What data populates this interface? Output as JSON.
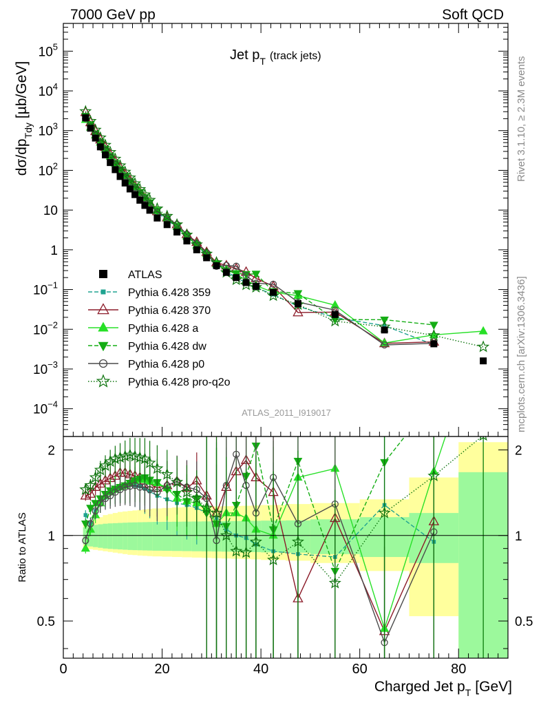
{
  "header": {
    "left": "7000 GeV pp",
    "right": "Soft QCD"
  },
  "side_labels": {
    "rivet": "Rivet 3.1.10, ≥ 2.3M events",
    "mcplots": "mcplots.cern.ch [arXiv:1306.3436]"
  },
  "chart_data": {
    "type": "scatter",
    "title": "Jet p",
    "title_sub": "T",
    "title_note": "(track jets)",
    "analysis_tag": "ATLAS_2011_I919017",
    "xlabel": "Charged Jet p",
    "xlabel_sub": "T",
    "xlabel_unit": "[GeV]",
    "ylabel": "dσ/dp",
    "ylabel_sub": "Tdy",
    "ylabel_unit": "[µb/GeV]",
    "ratio_ylabel": "Ratio to ATLAS",
    "xlim": [
      0,
      90
    ],
    "ylim": [
      2e-05,
      500000.0
    ],
    "yscale": "log",
    "ratio_ylim": [
      0.37,
      2.23
    ],
    "x_ticks": [
      "0",
      "20",
      "40",
      "60",
      "80"
    ],
    "y_ticks": [
      {
        "base": "10",
        "exp": "5"
      },
      {
        "base": "10",
        "exp": "4"
      },
      {
        "base": "10",
        "exp": "3"
      },
      {
        "base": "10",
        "exp": "2"
      },
      {
        "base": "10",
        "exp": ""
      },
      {
        "base": "1",
        "exp": ""
      },
      {
        "base": "10",
        "exp": "−1"
      },
      {
        "base": "10",
        "exp": "−2"
      },
      {
        "base": "10",
        "exp": "−3"
      },
      {
        "base": "10",
        "exp": "−4"
      }
    ],
    "ratio_ticks": [
      "0.5",
      "1",
      "2"
    ],
    "legend_position": "lower-left",
    "x": [
      4.5,
      5.5,
      6.5,
      7.5,
      8.5,
      9.5,
      10.5,
      11.5,
      12.5,
      13.5,
      14.5,
      15.5,
      16.5,
      17.5,
      19,
      21,
      23,
      25,
      27,
      29,
      31,
      33,
      35,
      37,
      39,
      42.5,
      47.5,
      55,
      65,
      75,
      85
    ],
    "data_values": [
      2100,
      1150,
      650,
      390,
      245,
      157,
      104,
      70,
      48,
      34,
      24.5,
      17.7,
      13.1,
      9.9,
      6.3,
      4.3,
      2.8,
      1.67,
      1.0,
      0.63,
      0.4,
      0.27,
      0.2,
      0.15,
      0.12,
      0.085,
      0.044,
      0.0235,
      0.0096,
      0.0043,
      0.0016
    ],
    "ratio_band_inner": [
      [
        4,
        4.5,
        0.93,
        1.07
      ],
      [
        4.5,
        5,
        0.92,
        1.08
      ],
      [
        5,
        6,
        0.915,
        1.085
      ],
      [
        6,
        7,
        0.91,
        1.09
      ],
      [
        7,
        8,
        0.905,
        1.095
      ],
      [
        8,
        9,
        0.9,
        1.1
      ],
      [
        9,
        10,
        0.897,
        1.103
      ],
      [
        10,
        11,
        0.895,
        1.105
      ],
      [
        11,
        12,
        0.893,
        1.107
      ],
      [
        12,
        13,
        0.891,
        1.109
      ],
      [
        13,
        14,
        0.889,
        1.111
      ],
      [
        14,
        15,
        0.888,
        1.112
      ],
      [
        15,
        16,
        0.887,
        1.113
      ],
      [
        16,
        17,
        0.886,
        1.114
      ],
      [
        17,
        18,
        0.885,
        1.115
      ],
      [
        18,
        20,
        0.884,
        1.116
      ],
      [
        20,
        22,
        0.883,
        1.117
      ],
      [
        22,
        24,
        0.882,
        1.118
      ],
      [
        24,
        26,
        0.881,
        1.119
      ],
      [
        26,
        28,
        0.88,
        1.12
      ],
      [
        28,
        30,
        0.879,
        1.121
      ],
      [
        30,
        32,
        0.878,
        1.122
      ],
      [
        32,
        34,
        0.877,
        1.123
      ],
      [
        34,
        36,
        0.876,
        1.124
      ],
      [
        36,
        38,
        0.875,
        1.125
      ],
      [
        38,
        40,
        0.874,
        1.126
      ],
      [
        40,
        45,
        0.872,
        1.128
      ],
      [
        45,
        50,
        0.87,
        1.13
      ],
      [
        50,
        60,
        0.86,
        1.14
      ],
      [
        60,
        70,
        0.84,
        1.16
      ],
      [
        70,
        80,
        0.8,
        1.2
      ],
      [
        80,
        90,
        0.37,
        1.67
      ]
    ],
    "ratio_band_outer": [
      [
        4,
        4.5,
        0.88,
        1.12
      ],
      [
        4.5,
        5,
        0.9,
        1.1
      ],
      [
        5,
        6,
        0.895,
        1.12
      ],
      [
        6,
        7,
        0.89,
        1.14
      ],
      [
        7,
        8,
        0.885,
        1.16
      ],
      [
        8,
        9,
        0.88,
        1.18
      ],
      [
        9,
        10,
        0.875,
        1.19
      ],
      [
        10,
        11,
        0.87,
        1.2
      ],
      [
        11,
        12,
        0.865,
        1.21
      ],
      [
        12,
        13,
        0.86,
        1.215
      ],
      [
        13,
        14,
        0.855,
        1.22
      ],
      [
        14,
        15,
        0.853,
        1.225
      ],
      [
        15,
        16,
        0.85,
        1.23
      ],
      [
        16,
        17,
        0.848,
        1.235
      ],
      [
        17,
        18,
        0.846,
        1.24
      ],
      [
        18,
        20,
        0.844,
        1.245
      ],
      [
        20,
        22,
        0.842,
        1.25
      ],
      [
        22,
        24,
        0.84,
        1.255
      ],
      [
        24,
        26,
        0.838,
        1.258
      ],
      [
        26,
        28,
        0.836,
        1.26
      ],
      [
        28,
        30,
        0.834,
        1.262
      ],
      [
        30,
        32,
        0.832,
        1.265
      ],
      [
        32,
        34,
        0.83,
        1.268
      ],
      [
        34,
        36,
        0.828,
        1.27
      ],
      [
        36,
        38,
        0.826,
        1.272
      ],
      [
        38,
        40,
        0.824,
        1.275
      ],
      [
        40,
        45,
        0.82,
        1.28
      ],
      [
        45,
        50,
        0.815,
        1.29
      ],
      [
        50,
        60,
        0.8,
        1.3
      ],
      [
        60,
        70,
        0.75,
        1.34
      ],
      [
        70,
        80,
        0.52,
        1.6
      ],
      [
        80,
        90,
        0.37,
        2.13
      ]
    ],
    "series": [
      {
        "name": "ATLAS",
        "color": "#000000",
        "marker": "square",
        "dash": "none",
        "is_data": true
      },
      {
        "name": "Pythia 6.428 359",
        "color": "#1fa390",
        "marker": "square-small",
        "dash": "6,3",
        "ratio": [
          1.18,
          1.1,
          1.22,
          1.3,
          1.36,
          1.41,
          1.45,
          1.49,
          1.5,
          1.51,
          1.5,
          1.49,
          1.46,
          1.43,
          1.38,
          1.34,
          1.3,
          1.28,
          1.25,
          1.2,
          1.15,
          1.05,
          1.0,
          0.98,
          0.93,
          0.88,
          0.86,
          0.84,
          1.28,
          0.95,
          null
        ]
      },
      {
        "name": "Pythia 6.428 370",
        "color": "#8b1a28",
        "marker": "triangle-open",
        "dash": "none",
        "ratio": [
          1.38,
          1.4,
          1.48,
          1.52,
          1.56,
          1.59,
          1.62,
          1.66,
          1.66,
          1.64,
          1.62,
          1.6,
          1.56,
          1.52,
          1.47,
          1.5,
          1.55,
          1.47,
          1.56,
          1.38,
          1.2,
          1.48,
          1.68,
          1.84,
          1.6,
          1.42,
          0.6,
          1.15,
          0.46,
          1.12,
          null
        ]
      },
      {
        "name": "Pythia 6.428 a",
        "color": "#27e027",
        "marker": "triangle",
        "dash": "none",
        "ratio": [
          0.9,
          1.05,
          1.18,
          1.3,
          1.38,
          1.42,
          1.45,
          1.48,
          1.5,
          1.53,
          1.56,
          1.58,
          1.57,
          1.55,
          1.53,
          1.47,
          1.35,
          1.32,
          1.3,
          1.25,
          1.1,
          1.2,
          1.2,
          1.15,
          1.05,
          1.0,
          1.6,
          1.72,
          0.47,
          1.68,
          5.6
        ]
      },
      {
        "name": "Pythia 6.428 dw",
        "color": "#14ad14",
        "marker": "triangle-down",
        "dash": "6,3",
        "ratio": [
          1.1,
          1.25,
          1.3,
          1.35,
          1.4,
          1.44,
          1.46,
          1.48,
          1.5,
          1.53,
          1.56,
          1.58,
          1.6,
          1.57,
          1.54,
          1.45,
          1.4,
          1.32,
          1.35,
          1.2,
          1.1,
          1.08,
          1.28,
          1.62,
          2.07,
          1.05,
          1.83,
          0.75,
          1.81,
          3.0,
          null
        ]
      },
      {
        "name": "Pythia 6.428 p0",
        "color": "#4a4a4a",
        "marker": "circle-open",
        "dash": "none",
        "ratio": [
          0.96,
          1.1,
          1.22,
          1.3,
          1.35,
          1.38,
          1.42,
          1.45,
          1.48,
          1.49,
          1.5,
          1.48,
          1.48,
          1.45,
          1.42,
          1.5,
          1.55,
          1.48,
          1.45,
          1.35,
          0.96,
          1.5,
          1.93,
          1.5,
          1.2,
          1.6,
          1.1,
          1.29,
          0.42,
          1.03,
          null
        ]
      },
      {
        "name": "Pythia 6.428 pro-q2o",
        "color": "#0e740e",
        "marker": "star-open",
        "dash": "1.5,2.5",
        "ratio": [
          1.45,
          1.5,
          1.6,
          1.7,
          1.76,
          1.82,
          1.86,
          1.88,
          1.9,
          1.92,
          1.9,
          1.88,
          1.86,
          1.8,
          1.72,
          1.64,
          1.54,
          1.42,
          1.35,
          1.25,
          1.2,
          1.0,
          0.88,
          0.87,
          0.95,
          0.82,
          0.95,
          0.68,
          1.2,
          1.62,
          2.25
        ]
      }
    ]
  }
}
